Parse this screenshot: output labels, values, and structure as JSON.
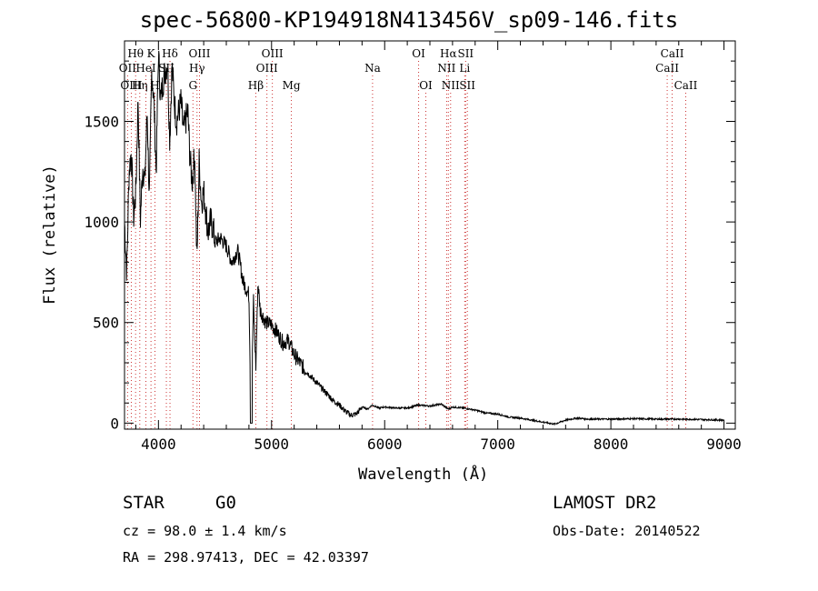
{
  "header": {
    "title": "spec-56800-KP194918N413456V_sp09-146.fits"
  },
  "info": {
    "class_label": "STAR",
    "subclass_label": "G0",
    "velocity": "cz = 98.0 ± 1.4 km/s",
    "coordinates": "RA = 298.97413, DEC =  42.03397",
    "survey": "LAMOST DR2",
    "obs_date": "Obs-Date: 20140522"
  },
  "chart_data": {
    "type": "line",
    "title": "spec-56800-KP194918N413456V_sp09-146.fits",
    "xlabel": "Wavelength (Å)",
    "ylabel": "Flux (relative)",
    "xlim": [
      3700,
      9100
    ],
    "ylim": [
      -30,
      1900
    ],
    "xticks": [
      4000,
      5000,
      6000,
      7000,
      8000,
      9000
    ],
    "yticks": [
      0,
      500,
      1000,
      1500
    ],
    "grid": false,
    "series": [
      {
        "x": [
          3700,
          3720,
          3740,
          3760,
          3780,
          3800,
          3820,
          3840,
          3860,
          3880,
          3900,
          3920,
          3940,
          3960,
          3980,
          4000,
          4020,
          4040,
          4060,
          4080,
          4100,
          4120,
          4140,
          4160,
          4180,
          4200,
          4220,
          4240,
          4260,
          4280,
          4300,
          4320,
          4340,
          4360,
          4380,
          4400,
          4420,
          4440,
          4460,
          4480,
          4500,
          4550,
          4600,
          4650,
          4700,
          4750,
          4800,
          4820,
          4840,
          4861,
          4880,
          4900,
          4950,
          5000,
          5050,
          5100,
          5150,
          5200,
          5250,
          5300,
          5350,
          5400,
          5450,
          5500,
          5550,
          5600,
          5650,
          5700,
          5750,
          5800,
          5850,
          5890,
          5950,
          6000,
          6100,
          6200,
          6300,
          6400,
          6500,
          6563,
          6600,
          6700,
          6800,
          6900,
          7000,
          7100,
          7200,
          7300,
          7400,
          7500,
          7600,
          7700,
          7800,
          8000,
          8200,
          8400,
          8600,
          8800,
          9000
        ],
        "y": [
          1000,
          750,
          1250,
          1350,
          1020,
          1150,
          1620,
          1000,
          1280,
          1200,
          1560,
          1100,
          1750,
          1600,
          1250,
          1840,
          1600,
          1700,
          1750,
          1800,
          1400,
          1780,
          1600,
          1500,
          1550,
          1600,
          1450,
          1500,
          1550,
          1300,
          1200,
          1350,
          800,
          1300,
          1100,
          1150,
          1050,
          950,
          1000,
          980,
          900,
          920,
          880,
          800,
          860,
          700,
          640,
          0,
          610,
          280,
          700,
          560,
          500,
          490,
          450,
          400,
          410,
          340,
          300,
          260,
          230,
          200,
          170,
          140,
          110,
          90,
          60,
          40,
          45,
          80,
          70,
          90,
          75,
          80,
          75,
          75,
          90,
          85,
          95,
          70,
          80,
          75,
          65,
          50,
          45,
          30,
          25,
          15,
          5,
          -5,
          15,
          25,
          20,
          20,
          22,
          20,
          20,
          18,
          15
        ]
      }
    ],
    "line_markers": [
      {
        "label": "Hθ",
        "wl": 3798,
        "row": 1
      },
      {
        "label": "K",
        "wl": 3934,
        "row": 1
      },
      {
        "label": "Hδ",
        "wl": 4102,
        "row": 1
      },
      {
        "label": "OII",
        "wl": 3727,
        "row": 2
      },
      {
        "label": "HeI",
        "wl": 3889,
        "row": 2
      },
      {
        "label": "SII",
        "wl": 4070,
        "row": 2
      },
      {
        "label": "OIII",
        "wl": 3760,
        "row": 3
      },
      {
        "label": "Hη",
        "wl": 3835,
        "row": 3
      },
      {
        "label": "H",
        "wl": 3969,
        "row": 3
      },
      {
        "label": "OIII",
        "wl": 4363,
        "row": 1
      },
      {
        "label": "Hγ",
        "wl": 4341,
        "row": 2
      },
      {
        "label": "G",
        "wl": 4305,
        "row": 3
      },
      {
        "label": "OIII",
        "wl": 5007,
        "row": 1
      },
      {
        "label": "OIII",
        "wl": 4959,
        "row": 2
      },
      {
        "label": "Hβ",
        "wl": 4861,
        "row": 3
      },
      {
        "label": "Mg",
        "wl": 5175,
        "row": 3
      },
      {
        "label": "Na",
        "wl": 5893,
        "row": 2
      },
      {
        "label": "OI",
        "wl": 6300,
        "row": 1
      },
      {
        "label": "OI",
        "wl": 6364,
        "row": 3
      },
      {
        "label": "Hα",
        "wl": 6563,
        "row": 1
      },
      {
        "label": "SII",
        "wl": 6716,
        "row": 1
      },
      {
        "label": "NII",
        "wl": 6548,
        "row": 2
      },
      {
        "label": "Li",
        "wl": 6708,
        "row": 2
      },
      {
        "label": "NII",
        "wl": 6583,
        "row": 3
      },
      {
        "label": "SII",
        "wl": 6731,
        "row": 3
      },
      {
        "label": "CaII",
        "wl": 8542,
        "row": 1
      },
      {
        "label": "CaII",
        "wl": 8498,
        "row": 2
      },
      {
        "label": "CaII",
        "wl": 8662,
        "row": 3
      }
    ]
  }
}
